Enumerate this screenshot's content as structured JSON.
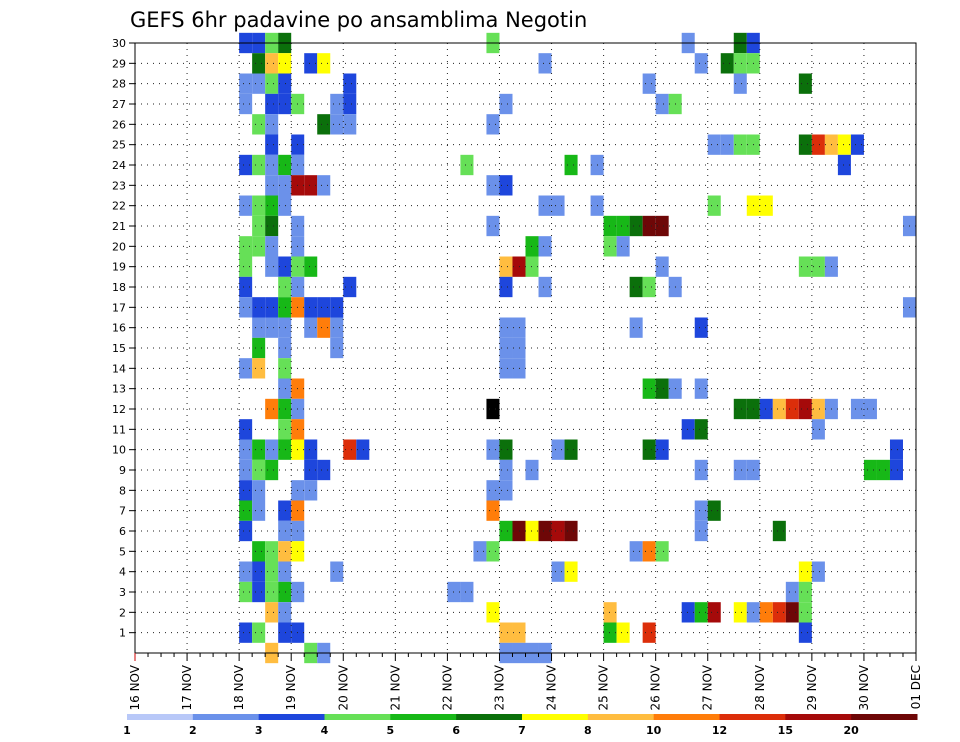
{
  "chart_data": {
    "type": "heatmap",
    "title": "GEFS 6hr padavine po ansamblima Negotin",
    "xlabel": "",
    "ylabel": "",
    "x_tick_labels": [
      "16 NOV",
      "17 NOV",
      "18 NOV",
      "19 NOV",
      "20 NOV",
      "21 NOV",
      "22 NOV",
      "23 NOV",
      "24 NOV",
      "25 NOV",
      "26 NOV",
      "27 NOV",
      "28 NOV",
      "29 NOV",
      "30 NOV",
      "01 DEC"
    ],
    "y_tick_labels": [
      "1",
      "2",
      "3",
      "4",
      "5",
      "6",
      "7",
      "8",
      "9",
      "10",
      "11",
      "12",
      "13",
      "14",
      "15",
      "16",
      "17",
      "18",
      "19",
      "20",
      "21",
      "22",
      "23",
      "24",
      "25",
      "26",
      "27",
      "28",
      "29",
      "30"
    ],
    "xlim": [
      "16 NOV 00Z",
      "01 DEC 00Z"
    ],
    "ylim": [
      0,
      30
    ],
    "time_step_hours": 6,
    "grid": true,
    "colorbar": {
      "labels": [
        "1",
        "2",
        "3",
        "4",
        "5",
        "6",
        "7",
        "8",
        "10",
        "12",
        "15",
        "20"
      ],
      "colors": [
        "#b8c8f8",
        "#6b91ea",
        "#1e46dc",
        "#66e057",
        "#17b817",
        "#0b700b",
        "#ffff00",
        "#ffbd40",
        "#ff7d0a",
        "#dc2e0a",
        "#a50a0a",
        "#6e0707"
      ]
    },
    "cells": [
      [
        "18 NOV 00Z",
        30,
        2
      ],
      [
        "18 NOV 06Z",
        30,
        2
      ],
      [
        "18 NOV 12Z",
        30,
        3
      ],
      [
        "18 NOV 18Z",
        30,
        5
      ],
      [
        "22 NOV 18Z",
        30,
        3
      ],
      [
        "26 NOV 12Z",
        30,
        1
      ],
      [
        "27 NOV 12Z",
        30,
        5
      ],
      [
        "27 NOV 18Z",
        30,
        2
      ],
      [
        "18 NOV 06Z",
        29,
        5
      ],
      [
        "18 NOV 12Z",
        29,
        7
      ],
      [
        "18 NOV 18Z",
        29,
        6
      ],
      [
        "19 NOV 06Z",
        29,
        2
      ],
      [
        "19 NOV 12Z",
        29,
        6
      ],
      [
        "23 NOV 18Z",
        29,
        1
      ],
      [
        "26 NOV 18Z",
        29,
        1
      ],
      [
        "27 NOV 06Z",
        29,
        5
      ],
      [
        "27 NOV 12Z",
        29,
        3
      ],
      [
        "27 NOV 18Z",
        29,
        3
      ],
      [
        "18 NOV 00Z",
        28,
        1
      ],
      [
        "18 NOV 06Z",
        28,
        1
      ],
      [
        "18 NOV 12Z",
        28,
        3
      ],
      [
        "18 NOV 18Z",
        28,
        2
      ],
      [
        "20 NOV 00Z",
        28,
        2
      ],
      [
        "25 NOV 18Z",
        28,
        1
      ],
      [
        "27 NOV 12Z",
        28,
        1
      ],
      [
        "28 NOV 18Z",
        28,
        5
      ],
      [
        "18 NOV 00Z",
        27,
        1
      ],
      [
        "18 NOV 12Z",
        27,
        2
      ],
      [
        "18 NOV 18Z",
        27,
        2
      ],
      [
        "19 NOV 00Z",
        27,
        3
      ],
      [
        "19 NOV 18Z",
        27,
        1
      ],
      [
        "20 NOV 00Z",
        27,
        2
      ],
      [
        "23 NOV 00Z",
        27,
        1
      ],
      [
        "26 NOV 00Z",
        27,
        1
      ],
      [
        "26 NOV 06Z",
        27,
        3
      ],
      [
        "18 NOV 06Z",
        26,
        3
      ],
      [
        "18 NOV 12Z",
        26,
        1
      ],
      [
        "19 NOV 12Z",
        26,
        5
      ],
      [
        "19 NOV 18Z",
        26,
        1
      ],
      [
        "20 NOV 00Z",
        26,
        1
      ],
      [
        "22 NOV 18Z",
        26,
        1
      ],
      [
        "18 NOV 12Z",
        25,
        2
      ],
      [
        "19 NOV 00Z",
        25,
        2
      ],
      [
        "27 NOV 00Z",
        25,
        1
      ],
      [
        "27 NOV 06Z",
        25,
        1
      ],
      [
        "27 NOV 12Z",
        25,
        3
      ],
      [
        "27 NOV 18Z",
        25,
        3
      ],
      [
        "28 NOV 18Z",
        25,
        5
      ],
      [
        "29 NOV 00Z",
        25,
        9
      ],
      [
        "29 NOV 06Z",
        25,
        7
      ],
      [
        "29 NOV 12Z",
        25,
        6
      ],
      [
        "29 NOV 18Z",
        25,
        2
      ],
      [
        "18 NOV 00Z",
        24,
        2
      ],
      [
        "18 NOV 06Z",
        24,
        3
      ],
      [
        "18 NOV 12Z",
        24,
        1
      ],
      [
        "18 NOV 18Z",
        24,
        4
      ],
      [
        "19 NOV 00Z",
        24,
        1
      ],
      [
        "22 NOV 06Z",
        24,
        3
      ],
      [
        "24 NOV 06Z",
        24,
        4
      ],
      [
        "24 NOV 18Z",
        24,
        1
      ],
      [
        "29 NOV 12Z",
        24,
        2
      ],
      [
        "18 NOV 12Z",
        23,
        1
      ],
      [
        "18 NOV 18Z",
        23,
        1
      ],
      [
        "19 NOV 00Z",
        23,
        10
      ],
      [
        "19 NOV 06Z",
        23,
        10
      ],
      [
        "19 NOV 12Z",
        23,
        1
      ],
      [
        "22 NOV 18Z",
        23,
        1
      ],
      [
        "23 NOV 00Z",
        23,
        2
      ],
      [
        "18 NOV 00Z",
        22,
        1
      ],
      [
        "18 NOV 06Z",
        22,
        3
      ],
      [
        "18 NOV 12Z",
        22,
        4
      ],
      [
        "18 NOV 18Z",
        22,
        1
      ],
      [
        "23 NOV 18Z",
        22,
        1
      ],
      [
        "24 NOV 00Z",
        22,
        1
      ],
      [
        "24 NOV 18Z",
        22,
        1
      ],
      [
        "27 NOV 00Z",
        22,
        3
      ],
      [
        "27 NOV 18Z",
        22,
        6
      ],
      [
        "28 NOV 00Z",
        22,
        6
      ],
      [
        "18 NOV 06Z",
        21,
        3
      ],
      [
        "18 NOV 12Z",
        21,
        5
      ],
      [
        "19 NOV 00Z",
        21,
        1
      ],
      [
        "22 NOV 18Z",
        21,
        1
      ],
      [
        "25 NOV 00Z",
        21,
        4
      ],
      [
        "25 NOV 06Z",
        21,
        4
      ],
      [
        "25 NOV 12Z",
        21,
        5
      ],
      [
        "25 NOV 18Z",
        21,
        11
      ],
      [
        "26 NOV 00Z",
        21,
        11
      ],
      [
        "30 NOV 18Z",
        21,
        1
      ],
      [
        "18 NOV 00Z",
        20,
        3
      ],
      [
        "18 NOV 06Z",
        20,
        3
      ],
      [
        "18 NOV 12Z",
        20,
        1
      ],
      [
        "19 NOV 00Z",
        20,
        1
      ],
      [
        "23 NOV 12Z",
        20,
        4
      ],
      [
        "23 NOV 18Z",
        20,
        1
      ],
      [
        "25 NOV 00Z",
        20,
        3
      ],
      [
        "25 NOV 06Z",
        20,
        1
      ],
      [
        "18 NOV 00Z",
        19,
        3
      ],
      [
        "18 NOV 12Z",
        19,
        1
      ],
      [
        "18 NOV 18Z",
        19,
        2
      ],
      [
        "19 NOV 00Z",
        19,
        3
      ],
      [
        "19 NOV 06Z",
        19,
        4
      ],
      [
        "23 NOV 00Z",
        19,
        7
      ],
      [
        "23 NOV 06Z",
        19,
        10
      ],
      [
        "23 NOV 12Z",
        19,
        3
      ],
      [
        "26 NOV 00Z",
        19,
        1
      ],
      [
        "28 NOV 18Z",
        19,
        3
      ],
      [
        "29 NOV 00Z",
        19,
        3
      ],
      [
        "29 NOV 06Z",
        19,
        1
      ],
      [
        "18 NOV 00Z",
        18,
        2
      ],
      [
        "18 NOV 18Z",
        18,
        3
      ],
      [
        "19 NOV 00Z",
        18,
        1
      ],
      [
        "20 NOV 00Z",
        18,
        2
      ],
      [
        "23 NOV 00Z",
        18,
        2
      ],
      [
        "23 NOV 18Z",
        18,
        1
      ],
      [
        "25 NOV 12Z",
        18,
        5
      ],
      [
        "25 NOV 18Z",
        18,
        3
      ],
      [
        "26 NOV 06Z",
        18,
        1
      ],
      [
        "18 NOV 00Z",
        17,
        1
      ],
      [
        "18 NOV 06Z",
        17,
        2
      ],
      [
        "18 NOV 12Z",
        17,
        2
      ],
      [
        "18 NOV 18Z",
        17,
        4
      ],
      [
        "19 NOV 00Z",
        17,
        8
      ],
      [
        "19 NOV 06Z",
        17,
        2
      ],
      [
        "19 NOV 12Z",
        17,
        2
      ],
      [
        "19 NOV 18Z",
        17,
        2
      ],
      [
        "30 NOV 18Z",
        17,
        1
      ],
      [
        "18 NOV 06Z",
        16,
        1
      ],
      [
        "18 NOV 12Z",
        16,
        1
      ],
      [
        "18 NOV 18Z",
        16,
        1
      ],
      [
        "19 NOV 06Z",
        16,
        1
      ],
      [
        "19 NOV 12Z",
        16,
        8
      ],
      [
        "19 NOV 18Z",
        16,
        1
      ],
      [
        "23 NOV 00Z",
        16,
        1
      ],
      [
        "23 NOV 06Z",
        16,
        1
      ],
      [
        "25 NOV 12Z",
        16,
        1
      ],
      [
        "26 NOV 18Z",
        16,
        2
      ],
      [
        "18 NOV 06Z",
        15,
        4
      ],
      [
        "18 NOV 18Z",
        15,
        1
      ],
      [
        "19 NOV 18Z",
        15,
        1
      ],
      [
        "23 NOV 00Z",
        15,
        1
      ],
      [
        "23 NOV 06Z",
        15,
        1
      ],
      [
        "18 NOV 00Z",
        14,
        1
      ],
      [
        "18 NOV 06Z",
        14,
        7
      ],
      [
        "18 NOV 18Z",
        14,
        3
      ],
      [
        "23 NOV 00Z",
        14,
        1
      ],
      [
        "23 NOV 06Z",
        14,
        1
      ],
      [
        "18 NOV 18Z",
        13,
        1
      ],
      [
        "19 NOV 00Z",
        13,
        8
      ],
      [
        "25 NOV 18Z",
        13,
        4
      ],
      [
        "26 NOV 00Z",
        13,
        5
      ],
      [
        "26 NOV 06Z",
        13,
        1
      ],
      [
        "26 NOV 18Z",
        13,
        1
      ],
      [
        "18 NOV 12Z",
        12,
        8
      ],
      [
        "18 NOV 18Z",
        12,
        4
      ],
      [
        "19 NOV 00Z",
        12,
        1
      ],
      [
        "22 NOV 18Z",
        12,
        12
      ],
      [
        "27 NOV 12Z",
        12,
        5
      ],
      [
        "27 NOV 18Z",
        12,
        5
      ],
      [
        "28 NOV 00Z",
        12,
        2
      ],
      [
        "28 NOV 06Z",
        12,
        7
      ],
      [
        "28 NOV 12Z",
        12,
        9
      ],
      [
        "28 NOV 18Z",
        12,
        10
      ],
      [
        "29 NOV 00Z",
        12,
        7
      ],
      [
        "29 NOV 06Z",
        12,
        1
      ],
      [
        "29 NOV 18Z",
        12,
        1
      ],
      [
        "30 NOV 00Z",
        12,
        1
      ],
      [
        "18 NOV 00Z",
        11,
        2
      ],
      [
        "18 NOV 18Z",
        11,
        3
      ],
      [
        "19 NOV 00Z",
        11,
        8
      ],
      [
        "26 NOV 12Z",
        11,
        2
      ],
      [
        "26 NOV 18Z",
        11,
        5
      ],
      [
        "29 NOV 00Z",
        11,
        1
      ],
      [
        "18 NOV 00Z",
        10,
        1
      ],
      [
        "18 NOV 06Z",
        10,
        4
      ],
      [
        "18 NOV 12Z",
        10,
        1
      ],
      [
        "18 NOV 18Z",
        10,
        4
      ],
      [
        "19 NOV 00Z",
        10,
        6
      ],
      [
        "19 NOV 06Z",
        10,
        2
      ],
      [
        "20 NOV 00Z",
        10,
        9
      ],
      [
        "20 NOV 06Z",
        10,
        2
      ],
      [
        "22 NOV 18Z",
        10,
        1
      ],
      [
        "23 NOV 00Z",
        10,
        5
      ],
      [
        "24 NOV 00Z",
        10,
        1
      ],
      [
        "24 NOV 06Z",
        10,
        5
      ],
      [
        "25 NOV 18Z",
        10,
        5
      ],
      [
        "26 NOV 00Z",
        10,
        2
      ],
      [
        "30 NOV 12Z",
        10,
        2
      ],
      [
        "18 NOV 00Z",
        9,
        1
      ],
      [
        "18 NOV 06Z",
        9,
        3
      ],
      [
        "18 NOV 12Z",
        9,
        4
      ],
      [
        "19 NOV 06Z",
        9,
        2
      ],
      [
        "19 NOV 12Z",
        9,
        2
      ],
      [
        "23 NOV 00Z",
        9,
        1
      ],
      [
        "23 NOV 12Z",
        9,
        1
      ],
      [
        "26 NOV 18Z",
        9,
        1
      ],
      [
        "27 NOV 12Z",
        9,
        1
      ],
      [
        "27 NOV 18Z",
        9,
        1
      ],
      [
        "30 NOV 00Z",
        9,
        4
      ],
      [
        "30 NOV 06Z",
        9,
        4
      ],
      [
        "30 NOV 12Z",
        9,
        2
      ],
      [
        "18 NOV 00Z",
        8,
        2
      ],
      [
        "18 NOV 06Z",
        8,
        1
      ],
      [
        "19 NOV 00Z",
        8,
        1
      ],
      [
        "19 NOV 06Z",
        8,
        1
      ],
      [
        "22 NOV 18Z",
        8,
        1
      ],
      [
        "23 NOV 00Z",
        8,
        1
      ],
      [
        "18 NOV 00Z",
        7,
        4
      ],
      [
        "18 NOV 06Z",
        7,
        1
      ],
      [
        "18 NOV 18Z",
        7,
        2
      ],
      [
        "19 NOV 00Z",
        7,
        8
      ],
      [
        "22 NOV 18Z",
        7,
        8
      ],
      [
        "26 NOV 18Z",
        7,
        1
      ],
      [
        "27 NOV 00Z",
        7,
        5
      ],
      [
        "18 NOV 00Z",
        6,
        2
      ],
      [
        "18 NOV 18Z",
        6,
        1
      ],
      [
        "19 NOV 00Z",
        6,
        1
      ],
      [
        "23 NOV 00Z",
        6,
        4
      ],
      [
        "23 NOV 06Z",
        6,
        11
      ],
      [
        "23 NOV 12Z",
        6,
        6
      ],
      [
        "23 NOV 18Z",
        6,
        11
      ],
      [
        "24 NOV 00Z",
        6,
        10
      ],
      [
        "24 NOV 06Z",
        6,
        11
      ],
      [
        "26 NOV 18Z",
        6,
        1
      ],
      [
        "28 NOV 06Z",
        6,
        5
      ],
      [
        "18 NOV 06Z",
        5,
        4
      ],
      [
        "18 NOV 12Z",
        5,
        3
      ],
      [
        "18 NOV 18Z",
        5,
        7
      ],
      [
        "19 NOV 00Z",
        5,
        6
      ],
      [
        "22 NOV 12Z",
        5,
        1
      ],
      [
        "22 NOV 18Z",
        5,
        3
      ],
      [
        "25 NOV 12Z",
        5,
        1
      ],
      [
        "25 NOV 18Z",
        5,
        8
      ],
      [
        "26 NOV 00Z",
        5,
        3
      ],
      [
        "18 NOV 00Z",
        4,
        1
      ],
      [
        "18 NOV 06Z",
        4,
        2
      ],
      [
        "18 NOV 12Z",
        4,
        3
      ],
      [
        "18 NOV 18Z",
        4,
        1
      ],
      [
        "19 NOV 18Z",
        4,
        1
      ],
      [
        "24 NOV 00Z",
        4,
        1
      ],
      [
        "24 NOV 06Z",
        4,
        6
      ],
      [
        "28 NOV 18Z",
        4,
        6
      ],
      [
        "29 NOV 00Z",
        4,
        1
      ],
      [
        "18 NOV 00Z",
        3,
        3
      ],
      [
        "18 NOV 06Z",
        3,
        2
      ],
      [
        "18 NOV 12Z",
        3,
        3
      ],
      [
        "18 NOV 18Z",
        3,
        4
      ],
      [
        "19 NOV 00Z",
        3,
        1
      ],
      [
        "22 NOV 00Z",
        3,
        1
      ],
      [
        "22 NOV 06Z",
        3,
        1
      ],
      [
        "28 NOV 12Z",
        3,
        1
      ],
      [
        "28 NOV 18Z",
        3,
        3
      ],
      [
        "18 NOV 12Z",
        2,
        7
      ],
      [
        "18 NOV 18Z",
        2,
        1
      ],
      [
        "22 NOV 18Z",
        2,
        6
      ],
      [
        "25 NOV 00Z",
        2,
        7
      ],
      [
        "26 NOV 12Z",
        2,
        2
      ],
      [
        "26 NOV 18Z",
        2,
        4
      ],
      [
        "27 NOV 00Z",
        2,
        10
      ],
      [
        "27 NOV 12Z",
        2,
        6
      ],
      [
        "27 NOV 18Z",
        2,
        1
      ],
      [
        "28 NOV 00Z",
        2,
        8
      ],
      [
        "28 NOV 06Z",
        2,
        9
      ],
      [
        "28 NOV 12Z",
        2,
        11
      ],
      [
        "28 NOV 18Z",
        2,
        3
      ],
      [
        "18 NOV 00Z",
        1,
        2
      ],
      [
        "18 NOV 06Z",
        1,
        3
      ],
      [
        "18 NOV 18Z",
        1,
        2
      ],
      [
        "19 NOV 00Z",
        1,
        2
      ],
      [
        "23 NOV 00Z",
        1,
        7
      ],
      [
        "23 NOV 06Z",
        1,
        7
      ],
      [
        "25 NOV 00Z",
        1,
        4
      ],
      [
        "25 NOV 06Z",
        1,
        6
      ],
      [
        "25 NOV 18Z",
        1,
        9
      ],
      [
        "28 NOV 18Z",
        1,
        2
      ],
      [
        "18 NOV 12Z",
        0,
        7
      ],
      [
        "19 NOV 06Z",
        0,
        3
      ],
      [
        "19 NOV 12Z",
        0,
        1
      ],
      [
        "23 NOV 00Z",
        0,
        1
      ],
      [
        "23 NOV 06Z",
        0,
        1
      ],
      [
        "23 NOV 12Z",
        0,
        1
      ],
      [
        "23 NOV 18Z",
        0,
        1
      ]
    ]
  }
}
